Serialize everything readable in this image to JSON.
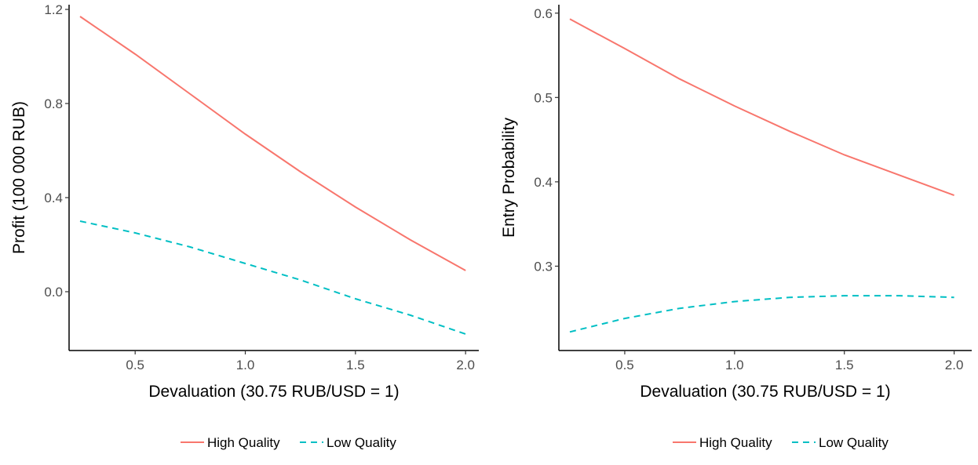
{
  "chart_data": [
    {
      "type": "line",
      "xlabel": "Devaluation (30.75 RUB/USD = 1)",
      "ylabel": "Profit (100 000 RUB)",
      "xlim": [
        0.2,
        2.06
      ],
      "ylim": [
        -0.25,
        1.22
      ],
      "x_ticks": [
        0.5,
        1.0,
        1.5,
        2.0
      ],
      "x_tick_labels": [
        "0.5",
        "1.0",
        "1.5",
        "2.0"
      ],
      "y_ticks": [
        0.0,
        0.4,
        0.8,
        1.2
      ],
      "y_tick_labels": [
        "0.0",
        "0.4",
        "0.8",
        "1.2"
      ],
      "grid": false,
      "legend_position": "bottom",
      "series": [
        {
          "name": "High Quality",
          "color": "#F8766D",
          "dash": "solid",
          "x": [
            0.25,
            0.5,
            0.75,
            1.0,
            1.25,
            1.5,
            1.75,
            2.0
          ],
          "y": [
            1.17,
            1.01,
            0.84,
            0.67,
            0.51,
            0.36,
            0.22,
            0.09
          ]
        },
        {
          "name": "Low Quality",
          "color": "#00BFC4",
          "dash": "dashed",
          "x": [
            0.25,
            0.5,
            0.75,
            1.0,
            1.25,
            1.5,
            1.75,
            2.0
          ],
          "y": [
            0.3,
            0.25,
            0.19,
            0.12,
            0.05,
            -0.03,
            -0.1,
            -0.18
          ]
        }
      ]
    },
    {
      "type": "line",
      "xlabel": "Devaluation (30.75 RUB/USD = 1)",
      "ylabel": "Entry Probability",
      "xlim": [
        0.2,
        2.08
      ],
      "ylim": [
        0.2,
        0.61
      ],
      "x_ticks": [
        0.5,
        1.0,
        1.5,
        2.0
      ],
      "x_tick_labels": [
        "0.5",
        "1.0",
        "1.5",
        "2.0"
      ],
      "y_ticks": [
        0.3,
        0.4,
        0.5,
        0.6
      ],
      "y_tick_labels": [
        "0.3",
        "0.4",
        "0.5",
        "0.6"
      ],
      "grid": false,
      "legend_position": "bottom",
      "series": [
        {
          "name": "High Quality",
          "color": "#F8766D",
          "dash": "solid",
          "x": [
            0.25,
            0.5,
            0.75,
            1.0,
            1.25,
            1.5,
            1.75,
            2.0
          ],
          "y": [
            0.593,
            0.558,
            0.522,
            0.49,
            0.46,
            0.432,
            0.408,
            0.384
          ]
        },
        {
          "name": "Low Quality",
          "color": "#00BFC4",
          "dash": "dashed",
          "x": [
            0.25,
            0.5,
            0.75,
            1.0,
            1.25,
            1.5,
            1.75,
            2.0
          ],
          "y": [
            0.222,
            0.238,
            0.25,
            0.258,
            0.263,
            0.265,
            0.265,
            0.263
          ]
        }
      ]
    }
  ]
}
